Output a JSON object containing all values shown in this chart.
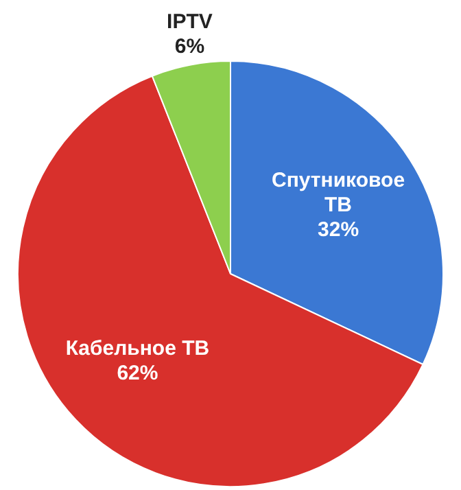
{
  "chart_data": {
    "type": "pie",
    "categories": [
      "Спутниковое ТВ",
      "Кабельное ТВ",
      "IPTV"
    ],
    "values": [
      32,
      62,
      6
    ],
    "colors": [
      "#3b78d3",
      "#d8302c",
      "#8dcf4e"
    ],
    "value_labels": [
      "32%",
      "62%",
      "6%"
    ],
    "legend": false
  }
}
